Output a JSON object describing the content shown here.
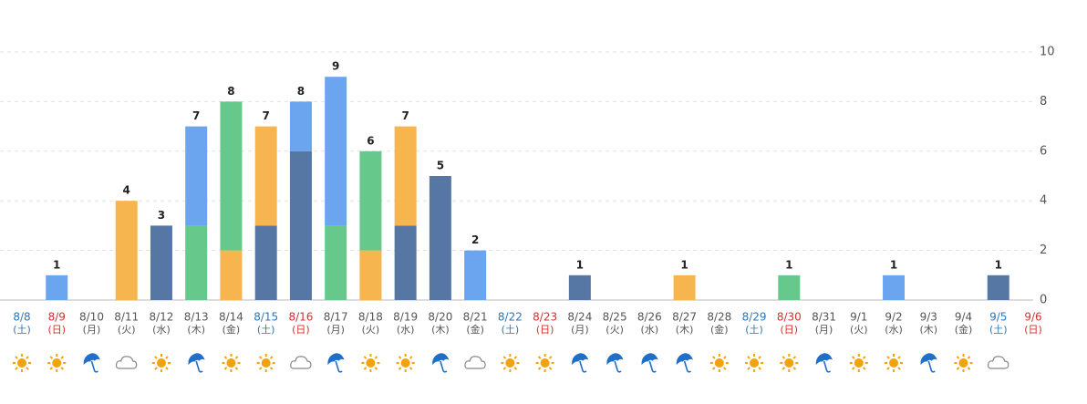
{
  "chart_data": {
    "type": "stacked_bar",
    "categories": [
      "8/8",
      "8/9",
      "8/10",
      "8/11",
      "8/12",
      "8/13",
      "8/14",
      "8/15",
      "8/16",
      "8/17",
      "8/18",
      "8/19",
      "8/20",
      "8/21",
      "8/22",
      "8/23",
      "8/24",
      "8/25",
      "8/26",
      "8/27",
      "8/28",
      "8/29",
      "8/30",
      "8/31",
      "9/1",
      "9/2",
      "9/3",
      "9/4",
      "9/5",
      "9/6"
    ],
    "weekdays": [
      "(土)",
      "(日)",
      "(月)",
      "(火)",
      "(水)",
      "(木)",
      "(金)",
      "(土)",
      "(日)",
      "(月)",
      "(火)",
      "(水)",
      "(木)",
      "(金)",
      "(土)",
      "(日)",
      "(月)",
      "(火)",
      "(水)",
      "(木)",
      "(金)",
      "(土)",
      "(日)",
      "(月)",
      "(火)",
      "(水)",
      "(木)",
      "(金)",
      "(土)",
      "(日)"
    ],
    "category_colors": [
      "#2e74b5",
      "#d0312d",
      "#555",
      "#555",
      "#555",
      "#555",
      "#555",
      "#2e74b5",
      "#d0312d",
      "#555",
      "#555",
      "#555",
      "#555",
      "#555",
      "#2e74b5",
      "#d0312d",
      "#555",
      "#555",
      "#555",
      "#555",
      "#555",
      "#2e74b5",
      "#d0312d",
      "#555",
      "#555",
      "#555",
      "#555",
      "#555",
      "#2e74b5",
      "#d0312d"
    ],
    "weather": [
      "sun",
      "sun",
      "umbrella",
      "cloud",
      "sun",
      "umbrella",
      "sun",
      "sun",
      "cloud",
      "umbrella",
      "sun",
      "sun",
      "umbrella",
      "cloud",
      "sun",
      "sun",
      "umbrella",
      "umbrella",
      "umbrella",
      "umbrella",
      "sun",
      "sun",
      "sun",
      "umbrella",
      "sun",
      "sun",
      "umbrella",
      "sun",
      "cloud",
      null
    ],
    "series": [
      {
        "color": "#5677a4",
        "values": [
          0,
          0,
          0,
          0,
          3,
          0,
          0,
          3,
          6,
          0,
          0,
          3,
          5,
          0,
          0,
          0,
          1,
          0,
          0,
          0,
          0,
          0,
          0,
          0,
          0,
          0,
          0,
          0,
          1,
          0
        ]
      },
      {
        "color": "#f6b54e",
        "values": [
          0,
          0,
          0,
          4,
          0,
          0,
          2,
          4,
          0,
          0,
          2,
          4,
          0,
          0,
          0,
          0,
          0,
          0,
          0,
          1,
          0,
          0,
          0,
          0,
          0,
          0,
          0,
          0,
          0,
          0
        ]
      },
      {
        "color": "#66c88b",
        "values": [
          0,
          0,
          0,
          0,
          0,
          3,
          6,
          0,
          0,
          3,
          4,
          0,
          0,
          0,
          0,
          0,
          0,
          0,
          0,
          0,
          0,
          0,
          1,
          0,
          0,
          0,
          0,
          0,
          0,
          0
        ]
      },
      {
        "color": "#6ba5ef",
        "values": [
          0,
          1,
          0,
          0,
          0,
          4,
          0,
          0,
          2,
          6,
          0,
          0,
          0,
          2,
          0,
          0,
          0,
          0,
          0,
          0,
          0,
          0,
          0,
          0,
          0,
          1,
          0,
          0,
          0,
          0
        ]
      }
    ],
    "totals": [
      null,
      1,
      null,
      4,
      3,
      7,
      8,
      7,
      8,
      9,
      6,
      7,
      5,
      2,
      null,
      null,
      1,
      null,
      null,
      1,
      null,
      null,
      1,
      null,
      null,
      1,
      null,
      null,
      1,
      null
    ],
    "ylim": [
      0,
      10
    ],
    "yticks": [
      0,
      2,
      4,
      6,
      8,
      10
    ],
    "grid": true
  }
}
